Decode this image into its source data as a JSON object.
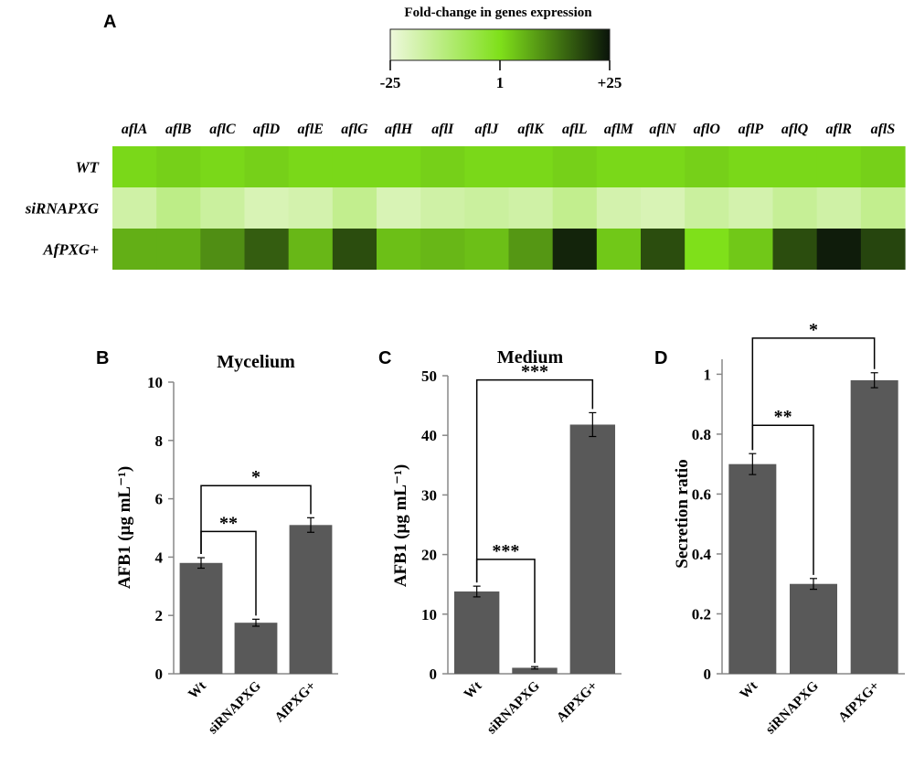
{
  "panel_letters": [
    "A",
    "B",
    "C",
    "D"
  ],
  "chart_data": [
    {
      "type": "heatmap",
      "panel": "A",
      "colorbar": {
        "title": "Fold-change in genes expression",
        "tick_labels": [
          "-25",
          "1",
          "+25"
        ],
        "range": [
          -25,
          25
        ],
        "colors": [
          "#eef8dc",
          "#7fe01a",
          "#0a140a"
        ]
      },
      "columns": [
        "aflA",
        "aflB",
        "aflC",
        "aflD",
        "aflE",
        "aflG",
        "aflH",
        "aflI",
        "aflJ",
        "aflK",
        "aflL",
        "aflM",
        "aflN",
        "aflO",
        "aflP",
        "aflQ",
        "aflR",
        "aflS"
      ],
      "rows": [
        {
          "name": "WT",
          "values": [
            1,
            2,
            1,
            2,
            1,
            1,
            1,
            2,
            1,
            1,
            2,
            1,
            1,
            2,
            1,
            1,
            1,
            2
          ]
        },
        {
          "name": "siRNAPXG",
          "values": [
            -18,
            -14,
            -17,
            -20,
            -19,
            -15,
            -20,
            -18,
            -17,
            -18,
            -15,
            -19,
            -20,
            -17,
            -19,
            -16,
            -18,
            -15
          ]
        },
        {
          "name": "AfPXG+",
          "values": [
            6,
            6,
            10,
            16,
            5,
            18,
            4,
            5,
            4,
            9,
            23,
            3,
            18,
            0,
            3,
            18,
            24,
            19
          ]
        }
      ]
    },
    {
      "type": "bar",
      "panel": "B",
      "title": "Mycelium",
      "ylabel": "AFB1 (µg mL⁻¹)",
      "categories": [
        "Wt",
        "siRNAPXG",
        "AfPXG+"
      ],
      "values": [
        3.8,
        1.75,
        5.1
      ],
      "errors": [
        0.18,
        0.12,
        0.25
      ],
      "ylim": [
        0,
        10
      ],
      "yticks": [
        "0",
        "2",
        "4",
        "6",
        "8",
        "10"
      ],
      "bar_color": "#595959",
      "significance": [
        {
          "from": 0,
          "to": 1,
          "label": "**"
        },
        {
          "from": 0,
          "to": 2,
          "label": "*"
        }
      ]
    },
    {
      "type": "bar",
      "panel": "C",
      "title": "Medium",
      "ylabel": "AFB1 (µg mL⁻¹)",
      "categories": [
        "Wt",
        "siRNAPXG",
        "AfPXG+"
      ],
      "values": [
        13.8,
        1.0,
        41.8
      ],
      "errors": [
        0.9,
        0.2,
        2.0
      ],
      "ylim": [
        0,
        50
      ],
      "yticks": [
        "0",
        "10",
        "20",
        "30",
        "40",
        "50"
      ],
      "bar_color": "#595959",
      "significance": [
        {
          "from": 0,
          "to": 1,
          "label": "***"
        },
        {
          "from": 0,
          "to": 2,
          "label": "***"
        }
      ]
    },
    {
      "type": "bar",
      "panel": "D",
      "title": "",
      "ylabel": "Secretion ratio",
      "categories": [
        "Wt",
        "siRNAPXG",
        "AfPXG+"
      ],
      "values": [
        0.7,
        0.3,
        0.98
      ],
      "errors": [
        0.035,
        0.018,
        0.025
      ],
      "ylim": [
        0,
        1.05
      ],
      "yticks": [
        "0",
        "0.2",
        "0.4",
        "0.6",
        "0.8",
        "1"
      ],
      "bar_color": "#595959",
      "significance": [
        {
          "from": 0,
          "to": 1,
          "label": "**"
        },
        {
          "from": 0,
          "to": 2,
          "label": "*"
        }
      ]
    }
  ]
}
